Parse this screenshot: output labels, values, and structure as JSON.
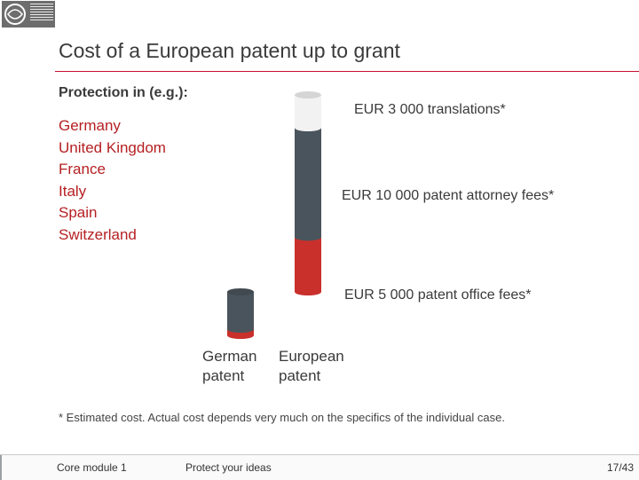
{
  "slide": {
    "title": "Cost of a European patent up to grant",
    "heading": "Protection in (e.g.):",
    "countries": [
      "Germany",
      "United Kingdom",
      "France",
      "Italy",
      "Spain",
      "Switzerland"
    ],
    "footnote": "* Estimated cost. Actual cost depends very much on the specifics of the individual case."
  },
  "chart_data": {
    "type": "bar",
    "stacked": true,
    "categories": [
      "German patent",
      "European patent"
    ],
    "category_lines": [
      [
        "German",
        "patent"
      ],
      [
        "European",
        "patent"
      ]
    ],
    "series": [
      {
        "label": "EUR 5 000 patent office fees*",
        "values": [
          null,
          5000
        ],
        "color": "#c9302c"
      },
      {
        "label": "EUR 10 000 patent attorney fees*",
        "values": [
          null,
          10000
        ],
        "color": "#4a545c"
      },
      {
        "label": "EUR 3 000 translations*",
        "values": [
          null,
          3000
        ],
        "color": "#f2f2f2"
      }
    ],
    "german_patent_bar_shown": true,
    "ylim": [
      0,
      18000
    ],
    "grid": false,
    "legend": "none"
  },
  "footer": {
    "module": "Core module 1",
    "tagline": "Protect your ideas",
    "page": "17/43"
  }
}
